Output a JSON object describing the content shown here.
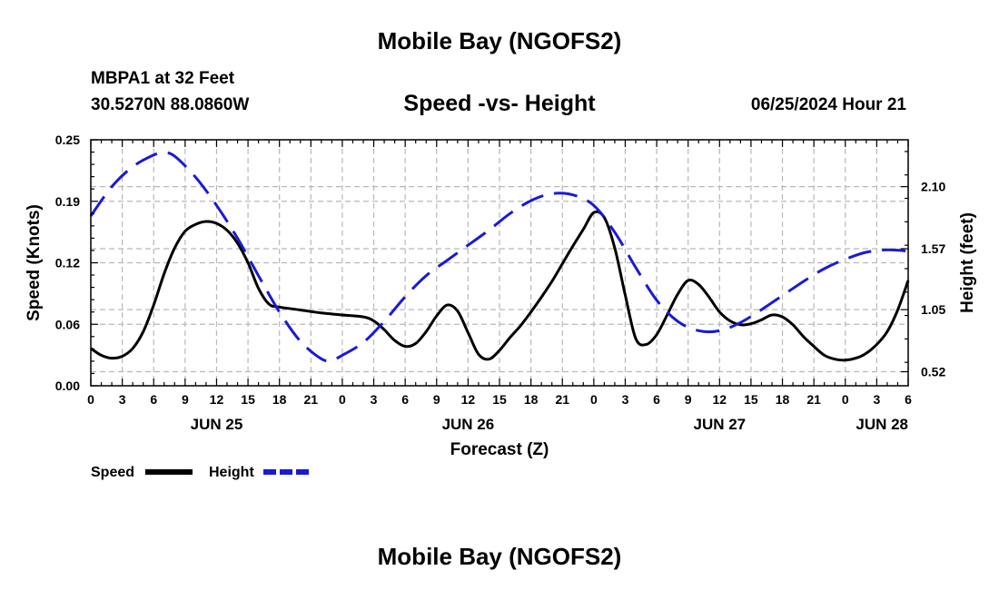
{
  "header": {
    "title": "Mobile Bay (NGOFS2)",
    "station": "MBPA1 at 32 Feet",
    "coords": "30.5270N  88.0860W",
    "subtitle": "Speed -vs- Height",
    "timestamp": "06/25/2024 Hour 21"
  },
  "footer": {
    "title": "Mobile Bay (NGOFS2)"
  },
  "chart_data": {
    "type": "line",
    "title": "Speed -vs- Height",
    "xlabel": "Forecast (Z)",
    "ylabel_left": "Speed (Knots)",
    "ylabel_right": "Height (feet)",
    "x_unit": "hours since Jun 25 00Z",
    "xlim": [
      0,
      78
    ],
    "ylim_left": [
      0,
      0.25
    ],
    "ylim_right": [
      0.4,
      2.5
    ],
    "yticks_left": [
      {
        "value": 0,
        "label": "0.00"
      },
      {
        "value": 0.0625,
        "label": "0.06"
      },
      {
        "value": 0.125,
        "label": "0.12"
      },
      {
        "value": 0.1875,
        "label": "0.19"
      },
      {
        "value": 0.25,
        "label": "0.25"
      }
    ],
    "yticks_right": [
      {
        "value": 0.52,
        "label": "0.52"
      },
      {
        "value": 1.05,
        "label": "1.05"
      },
      {
        "value": 1.57,
        "label": "1.57"
      },
      {
        "value": 2.1,
        "label": "2.10"
      }
    ],
    "xticks": [
      {
        "value": 0,
        "label": "0"
      },
      {
        "value": 3,
        "label": "3"
      },
      {
        "value": 6,
        "label": "6"
      },
      {
        "value": 9,
        "label": "9"
      },
      {
        "value": 12,
        "label": "12"
      },
      {
        "value": 15,
        "label": "15"
      },
      {
        "value": 18,
        "label": "18"
      },
      {
        "value": 21,
        "label": "21"
      },
      {
        "value": 24,
        "label": "0"
      },
      {
        "value": 27,
        "label": "3"
      },
      {
        "value": 30,
        "label": "6"
      },
      {
        "value": 33,
        "label": "9"
      },
      {
        "value": 36,
        "label": "12"
      },
      {
        "value": 39,
        "label": "15"
      },
      {
        "value": 42,
        "label": "18"
      },
      {
        "value": 45,
        "label": "21"
      },
      {
        "value": 48,
        "label": "0"
      },
      {
        "value": 51,
        "label": "3"
      },
      {
        "value": 54,
        "label": "6"
      },
      {
        "value": 57,
        "label": "9"
      },
      {
        "value": 60,
        "label": "12"
      },
      {
        "value": 63,
        "label": "15"
      },
      {
        "value": 66,
        "label": "18"
      },
      {
        "value": 69,
        "label": "21"
      },
      {
        "value": 72,
        "label": "0"
      },
      {
        "value": 75,
        "label": "3"
      },
      {
        "value": 78,
        "label": "6"
      }
    ],
    "date_labels": [
      {
        "value": 12,
        "label": "JUN 25"
      },
      {
        "value": 36,
        "label": "JUN 26"
      },
      {
        "value": 60,
        "label": "JUN 27"
      },
      {
        "value": 78,
        "label": "JUN 28"
      }
    ],
    "grid": true,
    "legend_position": "bottom-left",
    "series": [
      {
        "name": "Speed",
        "axis": "left",
        "color": "#000000",
        "dash": "solid",
        "points": [
          [
            0,
            0.038
          ],
          [
            1,
            0.031
          ],
          [
            2,
            0.028
          ],
          [
            3,
            0.03
          ],
          [
            4,
            0.038
          ],
          [
            5,
            0.055
          ],
          [
            6,
            0.082
          ],
          [
            7,
            0.114
          ],
          [
            8,
            0.14
          ],
          [
            9,
            0.157
          ],
          [
            10,
            0.164
          ],
          [
            11,
            0.167
          ],
          [
            12,
            0.165
          ],
          [
            13,
            0.158
          ],
          [
            14,
            0.145
          ],
          [
            15,
            0.125
          ],
          [
            16,
            0.099
          ],
          [
            17,
            0.083
          ],
          [
            18,
            0.08
          ],
          [
            20,
            0.077
          ],
          [
            22,
            0.074
          ],
          [
            24,
            0.072
          ],
          [
            26,
            0.07
          ],
          [
            27,
            0.066
          ],
          [
            28,
            0.057
          ],
          [
            29,
            0.046
          ],
          [
            30,
            0.04
          ],
          [
            31,
            0.043
          ],
          [
            32,
            0.055
          ],
          [
            33,
            0.071
          ],
          [
            34,
            0.082
          ],
          [
            35,
            0.076
          ],
          [
            36,
            0.054
          ],
          [
            37,
            0.032
          ],
          [
            38,
            0.027
          ],
          [
            39,
            0.036
          ],
          [
            40,
            0.049
          ],
          [
            41,
            0.061
          ],
          [
            42,
            0.075
          ],
          [
            43,
            0.09
          ],
          [
            44,
            0.106
          ],
          [
            45,
            0.124
          ],
          [
            46,
            0.142
          ],
          [
            47,
            0.159
          ],
          [
            48,
            0.176
          ],
          [
            49,
            0.171
          ],
          [
            50,
            0.14
          ],
          [
            51,
            0.092
          ],
          [
            52,
            0.048
          ],
          [
            53,
            0.042
          ],
          [
            54,
            0.052
          ],
          [
            55,
            0.072
          ],
          [
            56,
            0.093
          ],
          [
            57,
            0.107
          ],
          [
            58,
            0.103
          ],
          [
            59,
            0.09
          ],
          [
            60,
            0.075
          ],
          [
            61,
            0.066
          ],
          [
            62,
            0.062
          ],
          [
            63,
            0.063
          ],
          [
            64,
            0.067
          ],
          [
            65,
            0.072
          ],
          [
            66,
            0.07
          ],
          [
            67,
            0.062
          ],
          [
            68,
            0.05
          ],
          [
            69,
            0.04
          ],
          [
            70,
            0.031
          ],
          [
            71,
            0.027
          ],
          [
            72,
            0.026
          ],
          [
            73,
            0.028
          ],
          [
            74,
            0.033
          ],
          [
            75,
            0.042
          ],
          [
            76,
            0.055
          ],
          [
            77,
            0.077
          ],
          [
            78,
            0.107
          ]
        ]
      },
      {
        "name": "Height",
        "axis": "right",
        "color": "#1a1ad6",
        "dash": "dashed",
        "points": [
          [
            0,
            1.85
          ],
          [
            2,
            2.1
          ],
          [
            4,
            2.27
          ],
          [
            6,
            2.37
          ],
          [
            7,
            2.39
          ],
          [
            8,
            2.36
          ],
          [
            10,
            2.18
          ],
          [
            12,
            1.94
          ],
          [
            14,
            1.66
          ],
          [
            16,
            1.34
          ],
          [
            18,
            1.03
          ],
          [
            20,
            0.78
          ],
          [
            22,
            0.63
          ],
          [
            23,
            0.62
          ],
          [
            24,
            0.66
          ],
          [
            26,
            0.77
          ],
          [
            28,
            0.95
          ],
          [
            30,
            1.16
          ],
          [
            32,
            1.34
          ],
          [
            34,
            1.47
          ],
          [
            36,
            1.6
          ],
          [
            38,
            1.73
          ],
          [
            40,
            1.87
          ],
          [
            42,
            1.98
          ],
          [
            44,
            2.04
          ],
          [
            46,
            2.03
          ],
          [
            48,
            1.94
          ],
          [
            50,
            1.71
          ],
          [
            52,
            1.41
          ],
          [
            54,
            1.13
          ],
          [
            56,
            0.95
          ],
          [
            58,
            0.87
          ],
          [
            60,
            0.87
          ],
          [
            62,
            0.94
          ],
          [
            64,
            1.05
          ],
          [
            66,
            1.17
          ],
          [
            68,
            1.29
          ],
          [
            70,
            1.4
          ],
          [
            72,
            1.48
          ],
          [
            74,
            1.54
          ],
          [
            76,
            1.56
          ],
          [
            78,
            1.55
          ]
        ]
      }
    ]
  },
  "legend": {
    "items": [
      {
        "label": "Speed",
        "color": "#000000",
        "dash": "solid"
      },
      {
        "label": "Height",
        "color": "#1a1ad6",
        "dash": "dashed"
      }
    ]
  }
}
